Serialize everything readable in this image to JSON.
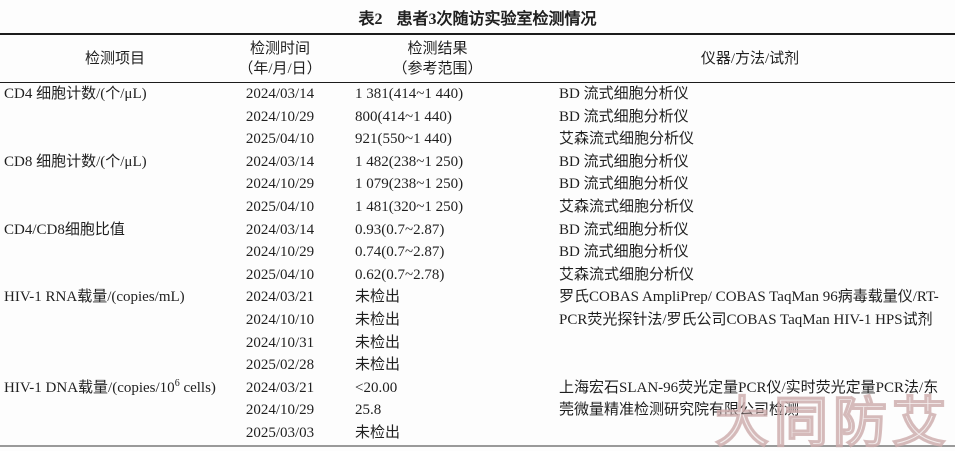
{
  "title": {
    "label": "表2",
    "text": "患者3次随访实验室检测情况"
  },
  "table": {
    "headers": {
      "item": "检测项目",
      "time_line1": "检测时间",
      "time_line2": "（年/月/日）",
      "result_line1": "检测结果",
      "result_line2": "（参考范围）",
      "instrument": "仪器/方法/试剂"
    },
    "groups": [
      {
        "item": "CD4 细胞计数/(个/μL)",
        "rows": [
          {
            "date": "2024/03/14",
            "result": "1 381(414~1 440)",
            "instrument": "BD 流式细胞分析仪"
          },
          {
            "date": "2024/10/29",
            "result": "800(414~1 440)",
            "instrument": "BD 流式细胞分析仪"
          },
          {
            "date": "2025/04/10",
            "result": "921(550~1 440)",
            "instrument": "艾森流式细胞分析仪"
          }
        ]
      },
      {
        "item": "CD8 细胞计数/(个/μL)",
        "rows": [
          {
            "date": "2024/03/14",
            "result": "1 482(238~1 250)",
            "instrument": "BD 流式细胞分析仪"
          },
          {
            "date": "2024/10/29",
            "result": "1 079(238~1 250)",
            "instrument": "BD 流式细胞分析仪"
          },
          {
            "date": "2025/04/10",
            "result": "1 481(320~1 250)",
            "instrument": "艾森流式细胞分析仪"
          }
        ]
      },
      {
        "item": "CD4/CD8细胞比值",
        "rows": [
          {
            "date": "2024/03/14",
            "result": "0.93(0.7~2.87)",
            "instrument": "BD 流式细胞分析仪"
          },
          {
            "date": "2024/10/29",
            "result": "0.74(0.7~2.87)",
            "instrument": "BD 流式细胞分析仪"
          },
          {
            "date": "2025/04/10",
            "result": "0.62(0.7~2.78)",
            "instrument": "艾森流式细胞分析仪"
          }
        ]
      },
      {
        "item": "HIV-1 RNA载量/(copies/mL)",
        "instrument_block": "罗氏COBAS AmpliPrep/ COBAS TaqMan 96病毒载量仪/RT-PCR荧光探针法/罗氏公司COBAS TaqMan HIV-1 HPS试剂",
        "rows": [
          {
            "date": "2024/03/21",
            "result": "未检出"
          },
          {
            "date": "2024/10/10",
            "result": "未检出"
          },
          {
            "date": "2024/10/31",
            "result": "未检出"
          },
          {
            "date": "2025/02/28",
            "result": "未检出"
          }
        ]
      },
      {
        "item_pre": "HIV-1 DNA载量/(copies/10",
        "item_sup": "6",
        "item_post": " cells)",
        "instrument_block": "上海宏石SLAN-96荧光定量PCR仪/实时荧光定量PCR法/东莞微量精准检测研究院有限公司检测",
        "rows": [
          {
            "date": "2024/03/21",
            "result": "<20.00"
          },
          {
            "date": "2024/10/29",
            "result": "25.8"
          },
          {
            "date": "2025/03/03",
            "result": "未检出"
          }
        ]
      }
    ]
  },
  "watermark": {
    "text": "大同防艾",
    "color": "#cdacac"
  }
}
